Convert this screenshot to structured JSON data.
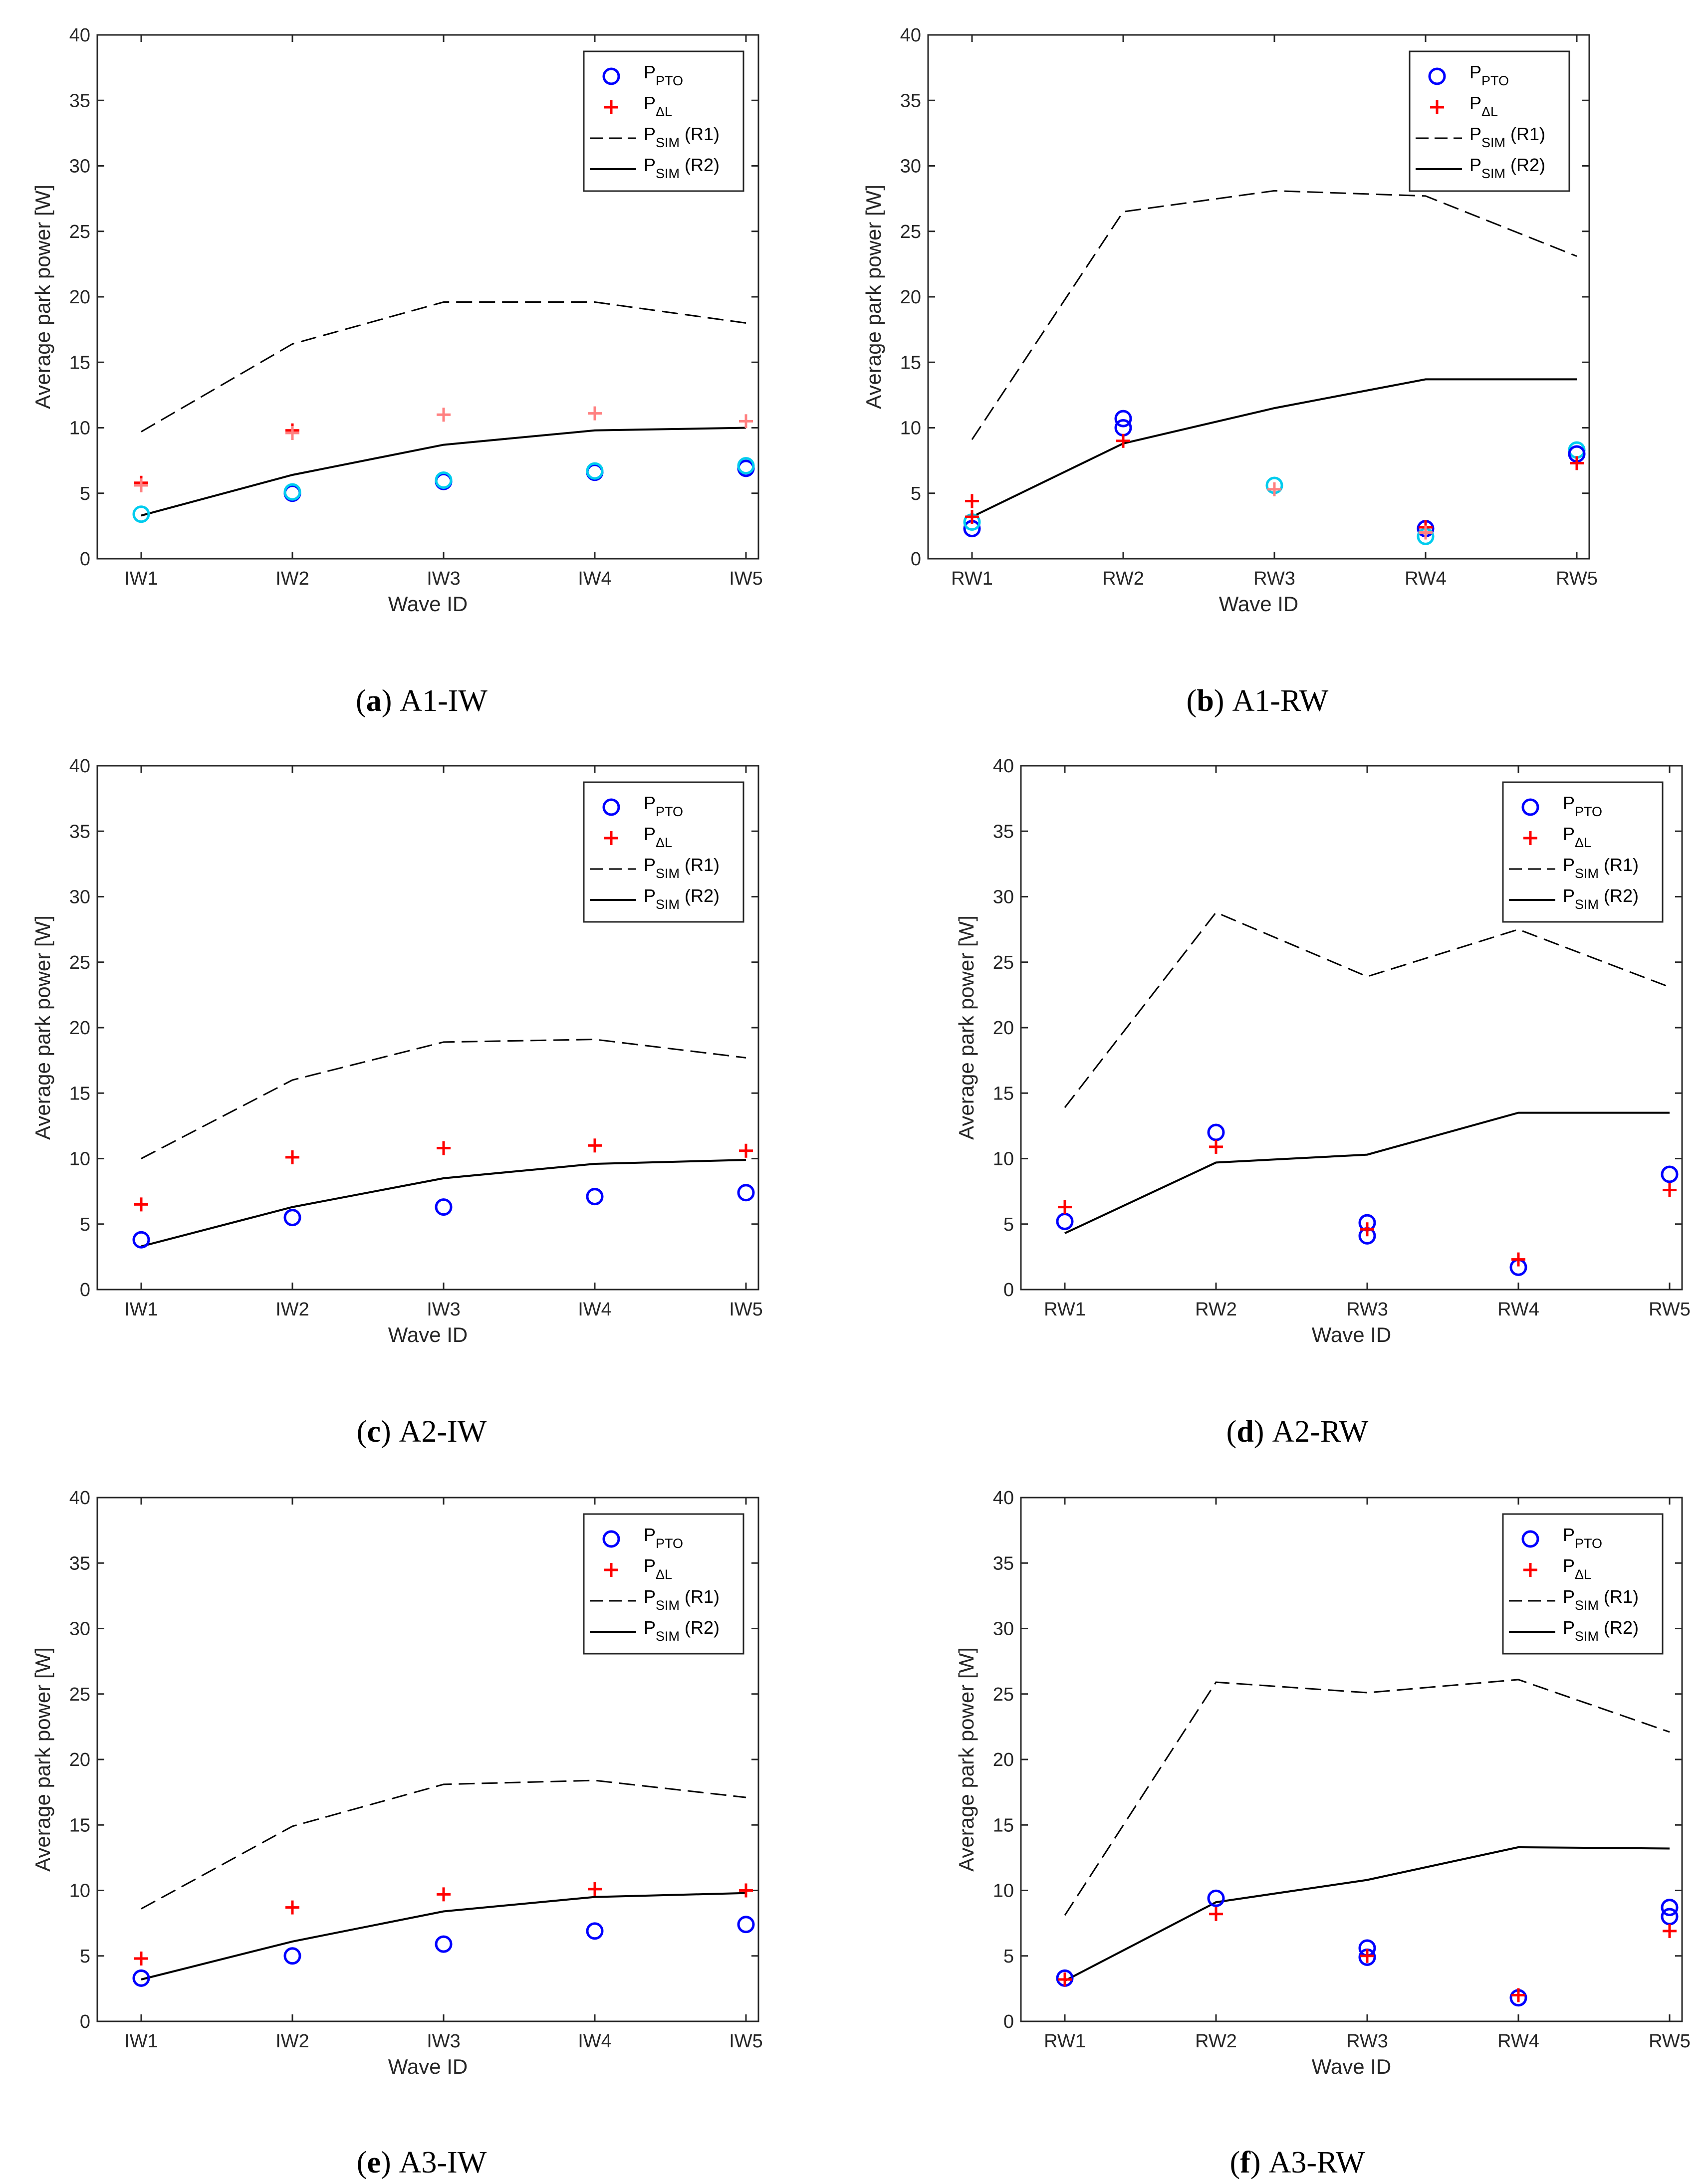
{
  "colors": {
    "pto": "#0000ff",
    "pto_light": "#00ccee",
    "dl": "#ff0000",
    "dl_light": "#ff8080",
    "axis": "#262626",
    "line": "#000000"
  },
  "chart_data": [
    {
      "type": "line",
      "caption_letter": "a",
      "caption_text": "A1-IW",
      "caption_open": "(",
      "caption_close": ")",
      "categories": [
        "IW1",
        "IW2",
        "IW3",
        "IW4",
        "IW5"
      ],
      "xlabel": "Wave ID",
      "ylabel": "Average park power [W]",
      "ylim": [
        0,
        40
      ],
      "yticks": [
        "0",
        "5",
        "10",
        "15",
        "20",
        "25",
        "30",
        "35",
        "40"
      ],
      "legend_position": "top-right",
      "legend": {
        "pto_main": "P",
        "pto_sub": "PTO",
        "dl_main": "P",
        "dl_sub": "ΔL",
        "r1_main": "P",
        "r1_sub": "SIM",
        "r1_suffix": "(R1)",
        "r2_main": "P",
        "r2_sub": "SIM",
        "r2_suffix": "(R2)"
      },
      "series": [
        {
          "name": "P_SIM (R1)",
          "style": "dashed",
          "values": [
            9.7,
            16.4,
            19.6,
            19.6,
            18.0
          ]
        },
        {
          "name": "P_SIM (R2)",
          "style": "solid",
          "values": [
            3.3,
            6.4,
            8.7,
            9.8,
            10.0
          ]
        }
      ],
      "pto_points": [
        {
          "x": 0,
          "y": 3.4,
          "tone": "light"
        },
        {
          "x": 1,
          "y": 5.0,
          "tone": "dark"
        },
        {
          "x": 1,
          "y": 5.1,
          "tone": "light"
        },
        {
          "x": 2,
          "y": 5.9,
          "tone": "dark"
        },
        {
          "x": 2,
          "y": 6.0,
          "tone": "light"
        },
        {
          "x": 3,
          "y": 6.6,
          "tone": "dark"
        },
        {
          "x": 3,
          "y": 6.7,
          "tone": "light"
        },
        {
          "x": 4,
          "y": 6.9,
          "tone": "dark"
        },
        {
          "x": 4,
          "y": 7.1,
          "tone": "light"
        }
      ],
      "dl_points": [
        {
          "x": 0,
          "y": 5.8,
          "tone": "dark"
        },
        {
          "x": 0,
          "y": 5.6,
          "tone": "light"
        },
        {
          "x": 1,
          "y": 9.8,
          "tone": "dark"
        },
        {
          "x": 1,
          "y": 9.6,
          "tone": "light"
        },
        {
          "x": 2,
          "y": 11.0,
          "tone": "light"
        },
        {
          "x": 3,
          "y": 11.1,
          "tone": "light"
        },
        {
          "x": 4,
          "y": 10.5,
          "tone": "light"
        }
      ]
    },
    {
      "type": "line",
      "caption_letter": "b",
      "caption_text": "A1-RW",
      "caption_open": "(",
      "caption_close": ")",
      "categories": [
        "RW1",
        "RW2",
        "RW3",
        "RW4",
        "RW5"
      ],
      "xlabel": "Wave ID",
      "ylabel": "Average park power [W]",
      "ylim": [
        0,
        40
      ],
      "yticks": [
        "0",
        "5",
        "10",
        "15",
        "20",
        "25",
        "30",
        "35",
        "40"
      ],
      "legend_position": "top-right",
      "legend": {
        "pto_main": "P",
        "pto_sub": "PTO",
        "dl_main": "P",
        "dl_sub": "ΔL",
        "r1_main": "P",
        "r1_sub": "SIM",
        "r1_suffix": "(R1)",
        "r2_main": "P",
        "r2_sub": "SIM",
        "r2_suffix": "(R2)"
      },
      "series": [
        {
          "name": "P_SIM (R1)",
          "style": "dashed",
          "values": [
            9.1,
            26.5,
            28.1,
            27.7,
            23.1
          ]
        },
        {
          "name": "P_SIM (R2)",
          "style": "solid",
          "values": [
            3.2,
            8.8,
            11.5,
            13.7,
            13.7
          ]
        }
      ],
      "pto_points": [
        {
          "x": 0,
          "y": 2.3,
          "tone": "dark"
        },
        {
          "x": 0,
          "y": 2.8,
          "tone": "light"
        },
        {
          "x": 1,
          "y": 10.7,
          "tone": "dark"
        },
        {
          "x": 1,
          "y": 10.0,
          "tone": "dark"
        },
        {
          "x": 2,
          "y": 5.6,
          "tone": "light"
        },
        {
          "x": 3,
          "y": 2.3,
          "tone": "dark"
        },
        {
          "x": 3,
          "y": 1.7,
          "tone": "light"
        },
        {
          "x": 4,
          "y": 8.3,
          "tone": "light"
        },
        {
          "x": 4,
          "y": 8.0,
          "tone": "dark"
        }
      ],
      "dl_points": [
        {
          "x": 0,
          "y": 4.4,
          "tone": "dark"
        },
        {
          "x": 0,
          "y": 3.2,
          "tone": "dark"
        },
        {
          "x": 1,
          "y": 9.0,
          "tone": "dark"
        },
        {
          "x": 2,
          "y": 5.3,
          "tone": "light"
        },
        {
          "x": 3,
          "y": 2.4,
          "tone": "dark"
        },
        {
          "x": 3,
          "y": 2.0,
          "tone": "light"
        },
        {
          "x": 4,
          "y": 7.3,
          "tone": "dark"
        }
      ]
    },
    {
      "type": "line",
      "caption_letter": "c",
      "caption_text": "A2-IW",
      "caption_open": "(",
      "caption_close": ")",
      "categories": [
        "IW1",
        "IW2",
        "IW3",
        "IW4",
        "IW5"
      ],
      "xlabel": "Wave ID",
      "ylabel": "Average park power [W]",
      "ylim": [
        0,
        40
      ],
      "yticks": [
        "0",
        "5",
        "10",
        "15",
        "20",
        "25",
        "30",
        "35",
        "40"
      ],
      "legend_position": "top-right",
      "legend": {
        "pto_main": "P",
        "pto_sub": "PTO",
        "dl_main": "P",
        "dl_sub": "ΔL",
        "r1_main": "P",
        "r1_sub": "SIM",
        "r1_suffix": "(R1)",
        "r2_main": "P",
        "r2_sub": "SIM",
        "r2_suffix": "(R2)"
      },
      "series": [
        {
          "name": "P_SIM (R1)",
          "style": "dashed",
          "values": [
            10.0,
            16.0,
            18.9,
            19.1,
            17.7
          ]
        },
        {
          "name": "P_SIM (R2)",
          "style": "solid",
          "values": [
            3.3,
            6.3,
            8.5,
            9.6,
            9.9
          ]
        }
      ],
      "pto_points": [
        {
          "x": 0,
          "y": 3.8,
          "tone": "dark"
        },
        {
          "x": 1,
          "y": 5.5,
          "tone": "dark"
        },
        {
          "x": 2,
          "y": 6.3,
          "tone": "dark"
        },
        {
          "x": 3,
          "y": 7.1,
          "tone": "dark"
        },
        {
          "x": 4,
          "y": 7.4,
          "tone": "dark"
        }
      ],
      "dl_points": [
        {
          "x": 0,
          "y": 6.5,
          "tone": "dark"
        },
        {
          "x": 1,
          "y": 10.1,
          "tone": "dark"
        },
        {
          "x": 2,
          "y": 10.8,
          "tone": "dark"
        },
        {
          "x": 3,
          "y": 11.0,
          "tone": "dark"
        },
        {
          "x": 4,
          "y": 10.6,
          "tone": "dark"
        }
      ]
    },
    {
      "type": "line",
      "caption_letter": "d",
      "caption_text": "A2-RW",
      "caption_open": "(",
      "caption_close": ")",
      "categories": [
        "RW1",
        "RW2",
        "RW3",
        "RW4",
        "RW5"
      ],
      "xlabel": "Wave ID",
      "ylabel": "Average park power [W]",
      "ylim": [
        0,
        40
      ],
      "yticks": [
        "0",
        "5",
        "10",
        "15",
        "20",
        "25",
        "30",
        "35",
        "40"
      ],
      "legend_position": "top-right",
      "legend": {
        "pto_main": "P",
        "pto_sub": "PTO",
        "dl_main": "P",
        "dl_sub": "ΔL",
        "r1_main": "P",
        "r1_sub": "SIM",
        "r1_suffix": "(R1)",
        "r2_main": "P",
        "r2_sub": "SIM",
        "r2_suffix": "(R2)"
      },
      "series": [
        {
          "name": "P_SIM (R1)",
          "style": "dashed",
          "values": [
            13.9,
            28.8,
            23.9,
            27.5,
            23.1
          ]
        },
        {
          "name": "P_SIM (R2)",
          "style": "solid",
          "values": [
            4.3,
            9.7,
            10.3,
            13.5,
            13.5
          ]
        }
      ],
      "pto_points": [
        {
          "x": 0,
          "y": 5.2,
          "tone": "dark"
        },
        {
          "x": 1,
          "y": 12.0,
          "tone": "dark"
        },
        {
          "x": 2,
          "y": 5.1,
          "tone": "dark"
        },
        {
          "x": 2,
          "y": 4.1,
          "tone": "dark"
        },
        {
          "x": 3,
          "y": 1.7,
          "tone": "dark"
        },
        {
          "x": 4,
          "y": 8.8,
          "tone": "dark"
        }
      ],
      "dl_points": [
        {
          "x": 0,
          "y": 6.3,
          "tone": "dark"
        },
        {
          "x": 1,
          "y": 10.9,
          "tone": "dark"
        },
        {
          "x": 2,
          "y": 4.6,
          "tone": "dark"
        },
        {
          "x": 3,
          "y": 2.3,
          "tone": "dark"
        },
        {
          "x": 4,
          "y": 7.6,
          "tone": "dark"
        }
      ]
    },
    {
      "type": "line",
      "caption_letter": "e",
      "caption_text": "A3-IW",
      "caption_open": "(",
      "caption_close": ")",
      "categories": [
        "IW1",
        "IW2",
        "IW3",
        "IW4",
        "IW5"
      ],
      "xlabel": "Wave ID",
      "ylabel": "Average park power [W]",
      "ylim": [
        0,
        40
      ],
      "yticks": [
        "0",
        "5",
        "10",
        "15",
        "20",
        "25",
        "30",
        "35",
        "40"
      ],
      "legend_position": "top-right",
      "legend": {
        "pto_main": "P",
        "pto_sub": "PTO",
        "dl_main": "P",
        "dl_sub": "ΔL",
        "r1_main": "P",
        "r1_sub": "SIM",
        "r1_suffix": "(R1)",
        "r2_main": "P",
        "r2_sub": "SIM",
        "r2_suffix": "(R2)"
      },
      "series": [
        {
          "name": "P_SIM (R1)",
          "style": "dashed",
          "values": [
            8.6,
            14.9,
            18.1,
            18.4,
            17.1
          ]
        },
        {
          "name": "P_SIM (R2)",
          "style": "solid",
          "values": [
            3.2,
            6.1,
            8.4,
            9.5,
            9.8
          ]
        }
      ],
      "pto_points": [
        {
          "x": 0,
          "y": 3.3,
          "tone": "dark"
        },
        {
          "x": 1,
          "y": 5.0,
          "tone": "dark"
        },
        {
          "x": 2,
          "y": 5.9,
          "tone": "dark"
        },
        {
          "x": 3,
          "y": 6.9,
          "tone": "dark"
        },
        {
          "x": 4,
          "y": 7.4,
          "tone": "dark"
        }
      ],
      "dl_points": [
        {
          "x": 0,
          "y": 4.8,
          "tone": "dark"
        },
        {
          "x": 1,
          "y": 8.7,
          "tone": "dark"
        },
        {
          "x": 2,
          "y": 9.7,
          "tone": "dark"
        },
        {
          "x": 3,
          "y": 10.1,
          "tone": "dark"
        },
        {
          "x": 4,
          "y": 10.0,
          "tone": "dark"
        }
      ]
    },
    {
      "type": "line",
      "caption_letter": "f",
      "caption_text": "A3-RW",
      "caption_open": "(",
      "caption_close": ")",
      "categories": [
        "RW1",
        "RW2",
        "RW3",
        "RW4",
        "RW5"
      ],
      "xlabel": "Wave ID",
      "ylabel": "Average park power [W]",
      "ylim": [
        0,
        40
      ],
      "yticks": [
        "0",
        "5",
        "10",
        "15",
        "20",
        "25",
        "30",
        "35",
        "40"
      ],
      "legend_position": "top-right",
      "legend": {
        "pto_main": "P",
        "pto_sub": "PTO",
        "dl_main": "P",
        "dl_sub": "ΔL",
        "r1_main": "P",
        "r1_sub": "SIM",
        "r1_suffix": "(R1)",
        "r2_main": "P",
        "r2_sub": "SIM",
        "r2_suffix": "(R2)"
      },
      "series": [
        {
          "name": "P_SIM (R1)",
          "style": "dashed",
          "values": [
            8.1,
            25.9,
            25.1,
            26.1,
            22.1
          ]
        },
        {
          "name": "P_SIM (R2)",
          "style": "solid",
          "values": [
            3.1,
            9.1,
            10.8,
            13.3,
            13.2
          ]
        }
      ],
      "pto_points": [
        {
          "x": 0,
          "y": 3.3,
          "tone": "dark"
        },
        {
          "x": 1,
          "y": 9.4,
          "tone": "dark"
        },
        {
          "x": 2,
          "y": 5.6,
          "tone": "dark"
        },
        {
          "x": 2,
          "y": 4.9,
          "tone": "dark"
        },
        {
          "x": 3,
          "y": 1.8,
          "tone": "dark"
        },
        {
          "x": 4,
          "y": 8.7,
          "tone": "dark"
        },
        {
          "x": 4,
          "y": 8.0,
          "tone": "dark"
        }
      ],
      "dl_points": [
        {
          "x": 0,
          "y": 3.2,
          "tone": "dark"
        },
        {
          "x": 1,
          "y": 8.2,
          "tone": "dark"
        },
        {
          "x": 2,
          "y": 5.0,
          "tone": "dark"
        },
        {
          "x": 3,
          "y": 2.0,
          "tone": "dark"
        },
        {
          "x": 4,
          "y": 6.9,
          "tone": "dark"
        }
      ]
    }
  ]
}
